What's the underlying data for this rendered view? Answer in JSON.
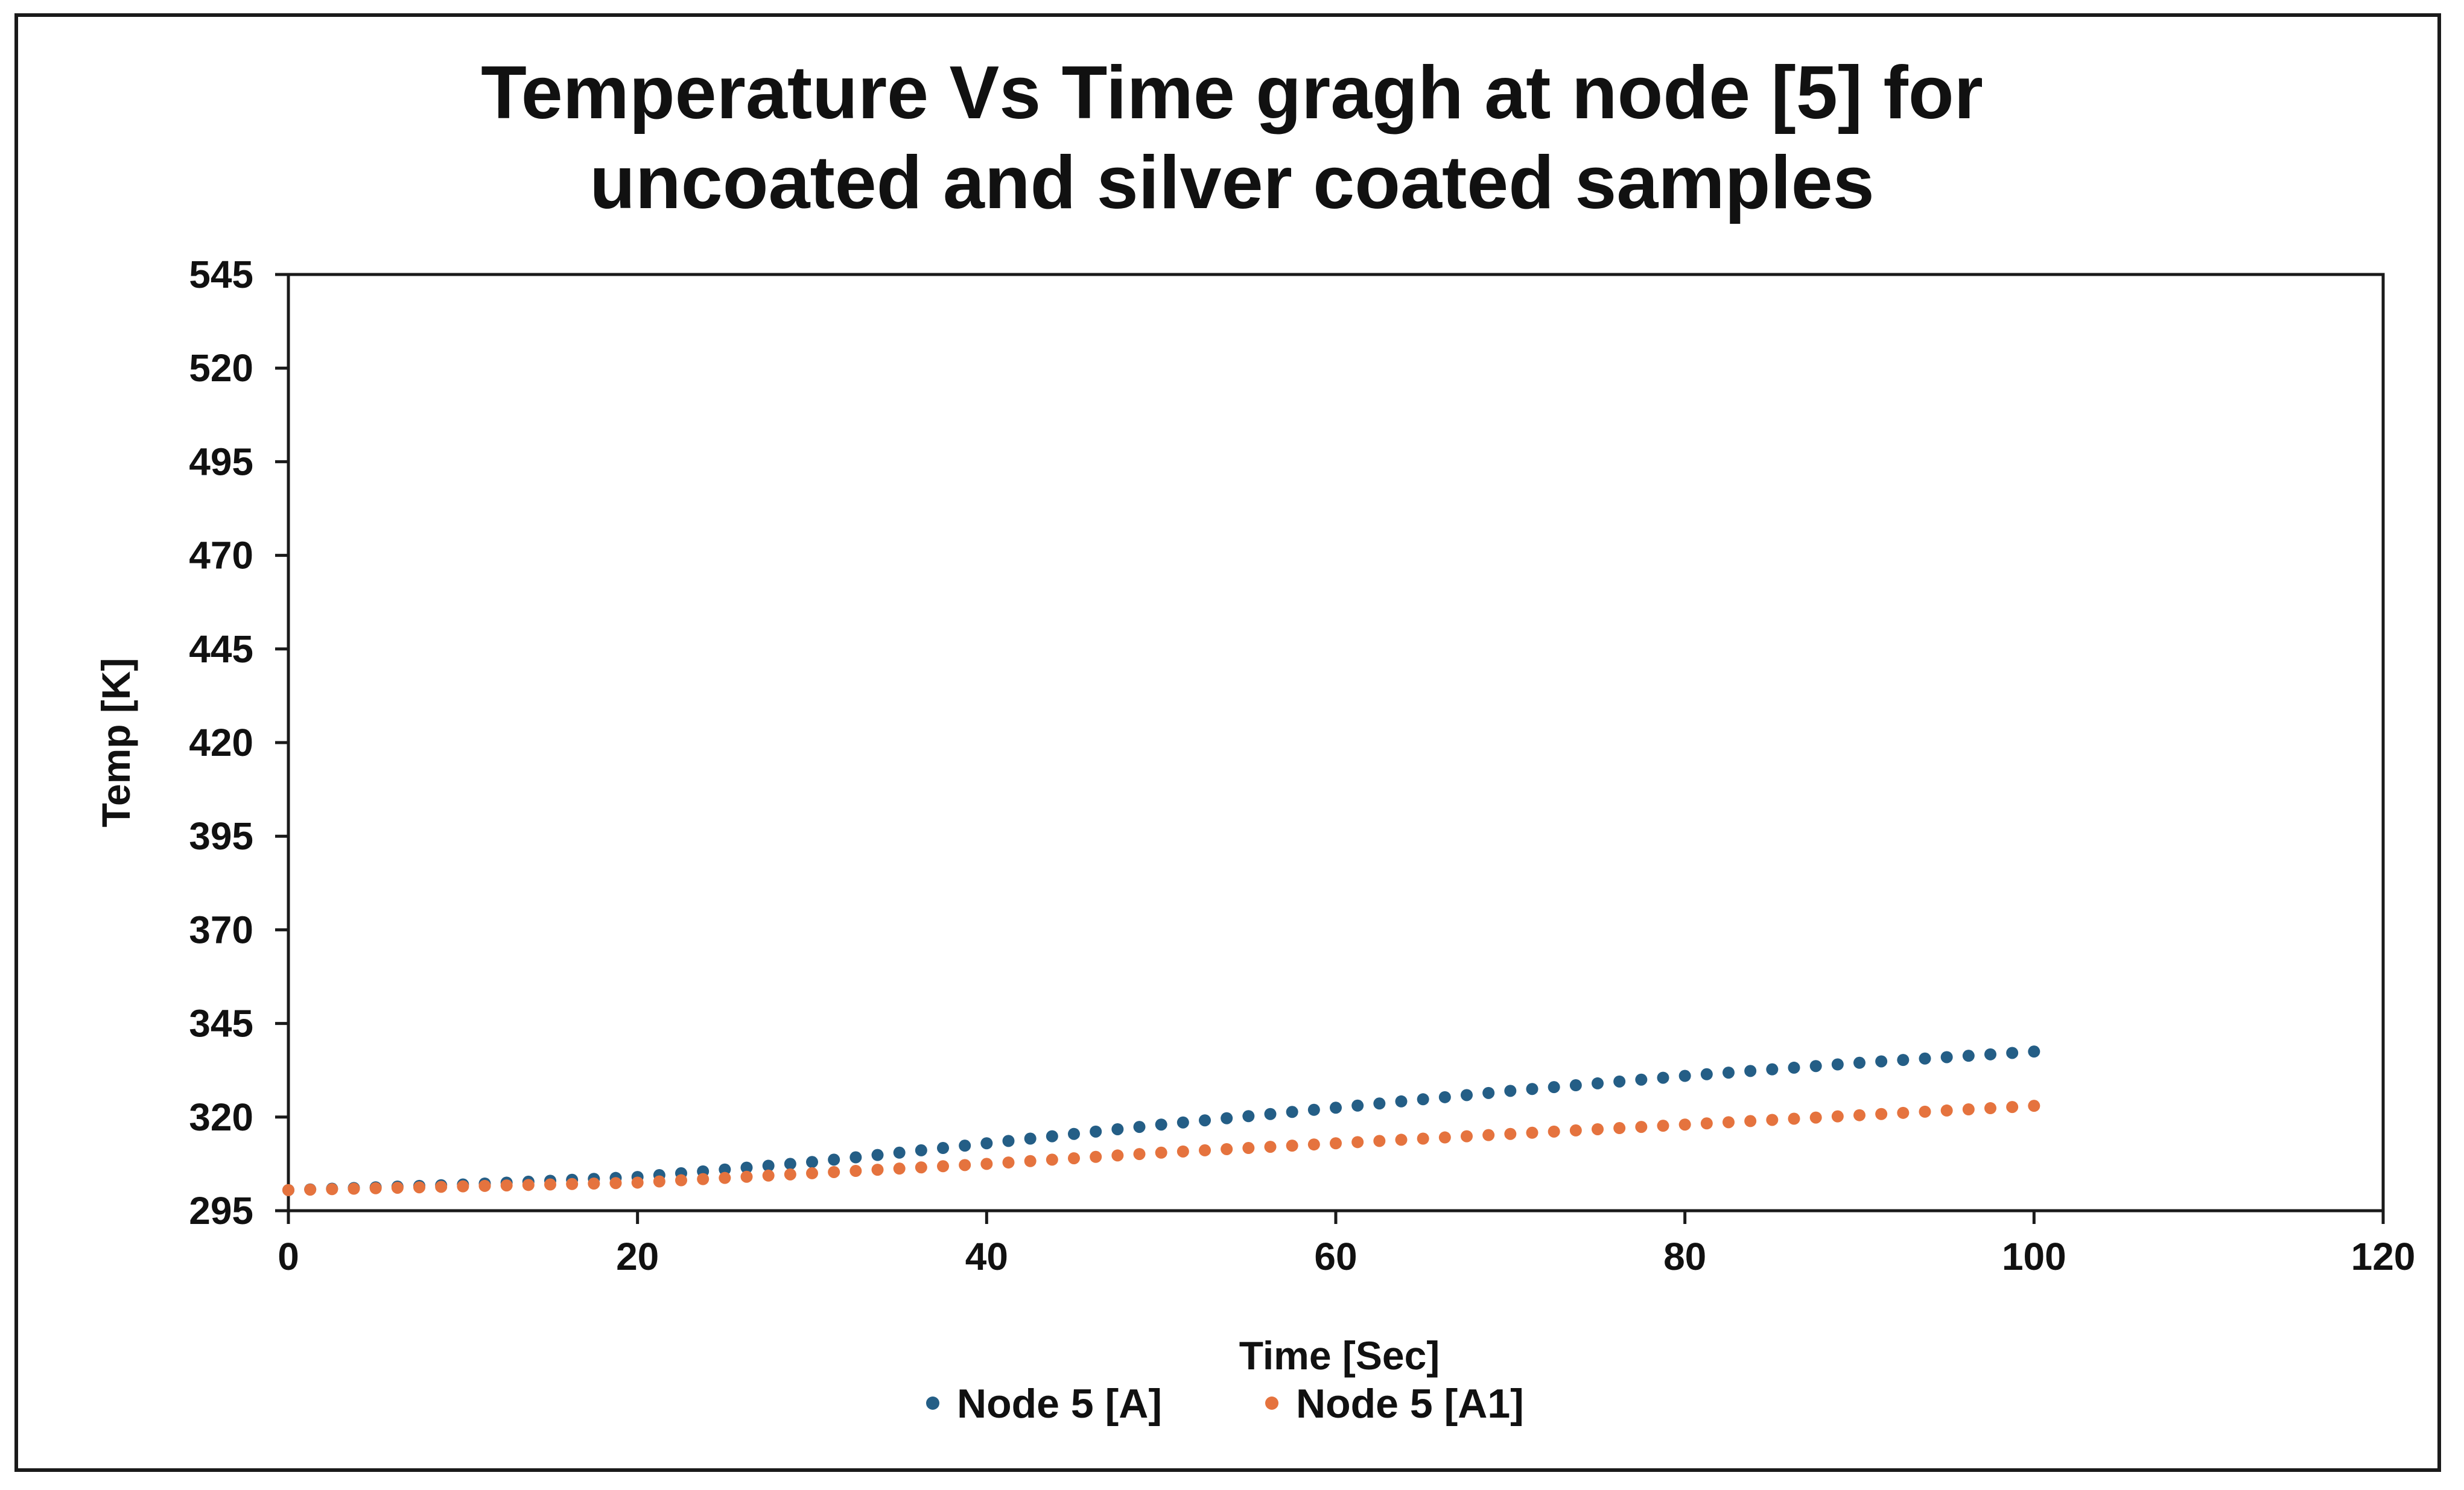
{
  "chart_data": {
    "type": "scatter",
    "title_line1": "Temperature Vs Time gragh at node [5] for",
    "title_line2": "uncoated and silver coated samples",
    "xlabel": "Time [Sec]",
    "ylabel": "Temp [K]",
    "xlim": [
      0,
      120
    ],
    "ylim": [
      295,
      545
    ],
    "xticks": [
      0,
      20,
      40,
      60,
      80,
      100,
      120
    ],
    "yticks": [
      295,
      320,
      345,
      370,
      395,
      420,
      445,
      470,
      495,
      520,
      545
    ],
    "grid": false,
    "legend_position": "bottom",
    "series": [
      {
        "name": "Node 5 [A]",
        "color": "#245E86",
        "x_start": 0,
        "x_end": 100,
        "x_step": 1.25,
        "y_anchors": [
          [
            0,
            300.5
          ],
          [
            10,
            302.0
          ],
          [
            20,
            304.0
          ],
          [
            30,
            308.0
          ],
          [
            40,
            313.0
          ],
          [
            50,
            318.0
          ],
          [
            60,
            322.5
          ],
          [
            70,
            327.0
          ],
          [
            80,
            331.0
          ],
          [
            90,
            334.5
          ],
          [
            100,
            337.5
          ]
        ]
      },
      {
        "name": "Node 5 [A1]",
        "color": "#E5733E",
        "x_start": 0,
        "x_end": 100,
        "x_step": 1.25,
        "y_anchors": [
          [
            0,
            300.5
          ],
          [
            10,
            301.5
          ],
          [
            20,
            302.5
          ],
          [
            30,
            305.0
          ],
          [
            40,
            307.5
          ],
          [
            50,
            310.5
          ],
          [
            60,
            313.0
          ],
          [
            70,
            315.5
          ],
          [
            80,
            318.0
          ],
          [
            90,
            320.5
          ],
          [
            100,
            323.0
          ]
        ]
      }
    ]
  }
}
